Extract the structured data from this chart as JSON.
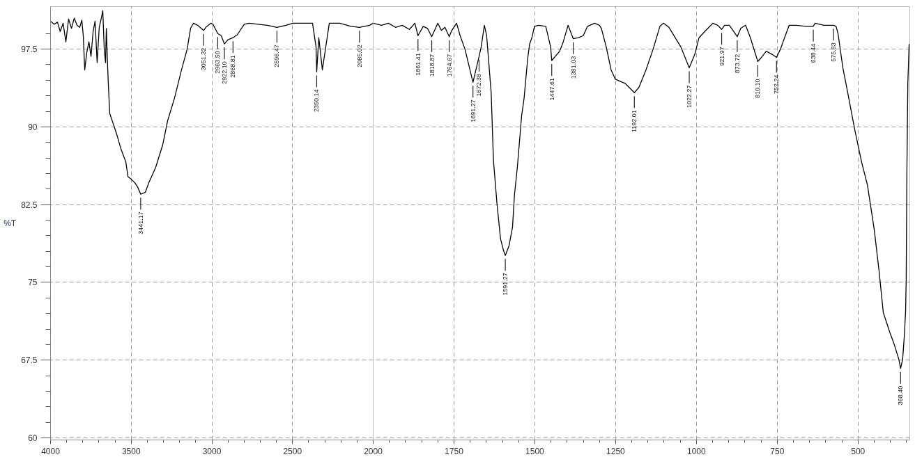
{
  "chart_data": [
    {
      "type": "line",
      "ylabel": "%T",
      "color": "#000000",
      "xlim": [
        4000,
        2000
      ],
      "xticks": [
        4000,
        {
          "value": 3900,
          "label": null
        },
        {
          "value": 3800,
          "label": null
        },
        {
          "value": 3700,
          "label": null
        },
        {
          "value": 3600,
          "label": null
        },
        3500,
        {
          "value": 3400,
          "label": null
        },
        {
          "value": 3300,
          "label": null
        },
        {
          "value": 3200,
          "label": null
        },
        {
          "value": 3100,
          "label": null
        },
        3000,
        {
          "value": 2900,
          "label": null
        },
        {
          "value": 2800,
          "label": null
        },
        {
          "value": 2700,
          "label": null
        },
        {
          "value": 2600,
          "label": null
        },
        2500,
        {
          "value": 2400,
          "label": null
        },
        {
          "value": 2300,
          "label": null
        },
        {
          "value": 2200,
          "label": null
        },
        {
          "value": 2100,
          "label": null
        },
        2000
      ],
      "ylim": [
        59.8,
        101.6
      ],
      "yticks": [
        60,
        {
          "value": 61.5,
          "label": null
        },
        {
          "value": 63,
          "label": null
        },
        {
          "value": 64.5,
          "label": null
        },
        {
          "value": 66,
          "label": null
        },
        67.5,
        {
          "value": 69,
          "label": null
        },
        {
          "value": 70.5,
          "label": null
        },
        {
          "value": 72,
          "label": null
        },
        {
          "value": 73.5,
          "label": null
        },
        75,
        {
          "value": 76.5,
          "label": null
        },
        {
          "value": 78,
          "label": null
        },
        {
          "value": 79.5,
          "label": null
        },
        {
          "value": 81,
          "label": null
        },
        82.5,
        {
          "value": 84,
          "label": null
        },
        {
          "value": 85.5,
          "label": null
        },
        {
          "value": 87,
          "label": null
        },
        {
          "value": 88.5,
          "label": null
        },
        90,
        {
          "value": 91.5,
          "label": null
        },
        {
          "value": 93,
          "label": null
        },
        {
          "value": 94.5,
          "label": null
        },
        {
          "value": 96,
          "label": null
        },
        97.5,
        {
          "value": 99,
          "label": null
        }
      ],
      "grid": true,
      "x": [
        4000,
        3978,
        3957,
        3940,
        3922,
        3905,
        3888,
        3870,
        3853,
        3836,
        3819,
        3806,
        3797,
        3788,
        3775,
        3762,
        3749,
        3736,
        3724,
        3711,
        3698,
        3685,
        3676,
        3667,
        3659,
        3654,
        3646,
        3641,
        3633,
        3607,
        3590,
        3564,
        3533,
        3520,
        3503,
        3477,
        3460,
        3441.17,
        3412,
        3391,
        3348,
        3304,
        3274,
        3231,
        3188,
        3153,
        3132,
        3114,
        3088,
        3051.32,
        3037,
        3006,
        2993,
        2963.5,
        2942,
        2922.1,
        2900,
        2868.81,
        2842,
        2799,
        2769,
        2713,
        2656,
        2596.47,
        2540,
        2497,
        2450,
        2376,
        2354,
        2350.14,
        2337,
        2315,
        2294,
        2272,
        2207,
        2138,
        2085.02,
        2022,
        2000
      ],
      "values": [
        100.2,
        99.9,
        100.1,
        99.2,
        100.0,
        98.2,
        100.4,
        99.5,
        100.5,
        99.8,
        99.6,
        100.3,
        98.8,
        95.5,
        97.2,
        98.2,
        96.8,
        99.2,
        100.2,
        96.2,
        99.6,
        100.5,
        101.2,
        97.5,
        96.2,
        99.5,
        95.8,
        93.9,
        91.3,
        90.1,
        89.3,
        87.9,
        86.6,
        85.2,
        85.0,
        84.6,
        84.2,
        83.5,
        83.7,
        84.6,
        86.1,
        88.3,
        90.6,
        92.8,
        95.5,
        97.5,
        99.5,
        100.0,
        99.8,
        99.3,
        99.6,
        100.0,
        99.9,
        99.0,
        98.8,
        98.0,
        98.4,
        98.6,
        98.9,
        99.9,
        100.0,
        99.9,
        99.8,
        99.6,
        99.8,
        100.0,
        100.0,
        100.0,
        97.7,
        95.3,
        98.6,
        95.5,
        97.7,
        100.0,
        100.0,
        99.7,
        99.6,
        99.8,
        100.0
      ],
      "annotations": [
        {
          "text": "3441.17",
          "x": 3441.17,
          "y": 83.5
        },
        {
          "text": "3051.32",
          "x": 3051.32,
          "y": 99.3
        },
        {
          "text": "2963.50",
          "x": 2963.5,
          "y": 99.0
        },
        {
          "text": "2922.10",
          "x": 2922.1,
          "y": 98.0
        },
        {
          "text": "2868.81",
          "x": 2868.81,
          "y": 98.6
        },
        {
          "text": "2596.47",
          "x": 2596.47,
          "y": 99.6
        },
        {
          "text": "2350.14",
          "x": 2350.14,
          "y": 95.3
        },
        {
          "text": "2085.02",
          "x": 2085.02,
          "y": 99.6
        }
      ]
    },
    {
      "type": "line",
      "color": "#000000",
      "tick_labels": "x",
      "xlim": [
        2000,
        340
      ],
      "xticks": [
        {
          "value": 1950,
          "label": null
        },
        {
          "value": 1900,
          "label": null
        },
        {
          "value": 1850,
          "label": null
        },
        {
          "value": 1800,
          "label": null
        },
        1750,
        {
          "value": 1700,
          "label": null
        },
        {
          "value": 1650,
          "label": null
        },
        {
          "value": 1600,
          "label": null
        },
        {
          "value": 1550,
          "label": null
        },
        1500,
        {
          "value": 1450,
          "label": null
        },
        {
          "value": 1400,
          "label": null
        },
        {
          "value": 1350,
          "label": null
        },
        {
          "value": 1300,
          "label": null
        },
        1250,
        {
          "value": 1200,
          "label": null
        },
        {
          "value": 1150,
          "label": null
        },
        {
          "value": 1100,
          "label": null
        },
        {
          "value": 1050,
          "label": null
        },
        1000,
        {
          "value": 950,
          "label": null
        },
        {
          "value": 900,
          "label": null
        },
        {
          "value": 850,
          "label": null
        },
        {
          "value": 800,
          "label": null
        },
        750,
        {
          "value": 700,
          "label": null
        },
        {
          "value": 650,
          "label": null
        },
        {
          "value": 600,
          "label": null
        },
        {
          "value": 550,
          "label": null
        },
        500,
        {
          "value": 450,
          "label": null
        },
        {
          "value": 400,
          "label": null
        },
        {
          "value": 350,
          "label": null
        }
      ],
      "ylim": [
        59.8,
        101.6
      ],
      "yticks": [
        60,
        67.5,
        75,
        82.5,
        90,
        97.5
      ],
      "grid": true,
      "x": [
        2000,
        1974,
        1953,
        1931,
        1910,
        1888,
        1871,
        1861.41,
        1845,
        1832,
        1818.87,
        1800,
        1789,
        1778,
        1764.67,
        1757,
        1742,
        1731,
        1716,
        1691.27,
        1672.38,
        1666,
        1656,
        1649,
        1635,
        1628,
        1617,
        1606,
        1597,
        1591.27,
        1580,
        1569,
        1563,
        1554,
        1541,
        1533,
        1522,
        1516,
        1509,
        1501,
        1488,
        1466,
        1451,
        1447.61,
        1423,
        1412,
        1397,
        1381.03,
        1365,
        1350,
        1337,
        1315,
        1300,
        1294,
        1279,
        1264,
        1251,
        1221,
        1208,
        1192.01,
        1178,
        1156,
        1134,
        1113,
        1102,
        1085,
        1048,
        1022.27,
        1005,
        992,
        971,
        949,
        934,
        921.97,
        913,
        898,
        873.72,
        863,
        848,
        833,
        810.1,
        799,
        784,
        766,
        752.24,
        740,
        725,
        713,
        691,
        661,
        638.44,
        633,
        605,
        575.83,
        568,
        562,
        547,
        532,
        510,
        489,
        471,
        450,
        435,
        422,
        402,
        390,
        374,
        368.4,
        362,
        357,
        353,
        351,
        349,
        346,
        342
      ],
      "values": [
        100.0,
        99.8,
        100.0,
        99.6,
        99.8,
        99.4,
        100.0,
        98.8,
        99.7,
        99.5,
        98.7,
        100.0,
        99.3,
        99.6,
        98.7,
        99.3,
        100.0,
        98.8,
        97.5,
        94.3,
        96.8,
        97.7,
        99.8,
        98.8,
        93.3,
        86.8,
        82.6,
        79.2,
        78.1,
        77.6,
        78.5,
        80.3,
        83.4,
        86.1,
        91.0,
        92.8,
        96.6,
        98.0,
        98.6,
        99.7,
        99.8,
        99.7,
        97.7,
        96.4,
        97.3,
        98.2,
        99.8,
        98.5,
        98.6,
        98.8,
        99.7,
        100.0,
        99.8,
        99.5,
        97.7,
        95.5,
        94.6,
        94.2,
        93.8,
        93.3,
        93.8,
        95.5,
        97.5,
        99.7,
        100.0,
        99.6,
        97.7,
        95.7,
        97.0,
        98.6,
        99.3,
        100.0,
        99.8,
        99.4,
        99.8,
        99.8,
        98.7,
        99.5,
        99.8,
        98.6,
        96.3,
        96.7,
        97.3,
        97.0,
        96.7,
        97.5,
        98.8,
        99.8,
        99.8,
        99.7,
        99.7,
        100.0,
        99.8,
        99.8,
        99.7,
        99.0,
        95.7,
        93.3,
        89.7,
        86.6,
        84.4,
        80.1,
        76.1,
        72.1,
        70.2,
        69.2,
        67.6,
        66.7,
        67.6,
        69.8,
        72.1,
        75.4,
        85.4,
        94.2,
        98.0
      ],
      "annotations": [
        {
          "text": "1861.41",
          "x": 1861.41,
          "y": 98.8
        },
        {
          "text": "1818.87",
          "x": 1818.87,
          "y": 98.7
        },
        {
          "text": "1764.67",
          "x": 1764.67,
          "y": 98.7
        },
        {
          "text": "1691.27",
          "x": 1691.27,
          "y": 94.3
        },
        {
          "text": "1672.38",
          "x": 1672.38,
          "y": 96.8
        },
        {
          "text": "1591.27",
          "x": 1591.27,
          "y": 77.6
        },
        {
          "text": "1447.61",
          "x": 1447.61,
          "y": 96.4
        },
        {
          "text": "1381.03",
          "x": 1381.03,
          "y": 98.5
        },
        {
          "text": "1192.01",
          "x": 1192.01,
          "y": 93.3
        },
        {
          "text": "1022.27",
          "x": 1022.27,
          "y": 95.7
        },
        {
          "text": "921.97",
          "x": 921.97,
          "y": 99.4
        },
        {
          "text": "873.72",
          "x": 873.72,
          "y": 98.7
        },
        {
          "text": "810.10",
          "x": 810.1,
          "y": 96.3
        },
        {
          "text": "752.24",
          "x": 752.24,
          "y": 96.7
        },
        {
          "text": "638.44",
          "x": 638.44,
          "y": 99.7
        },
        {
          "text": "575.83",
          "x": 575.83,
          "y": 99.8
        },
        {
          "text": "368.40",
          "x": 368.4,
          "y": 66.7
        }
      ]
    }
  ]
}
